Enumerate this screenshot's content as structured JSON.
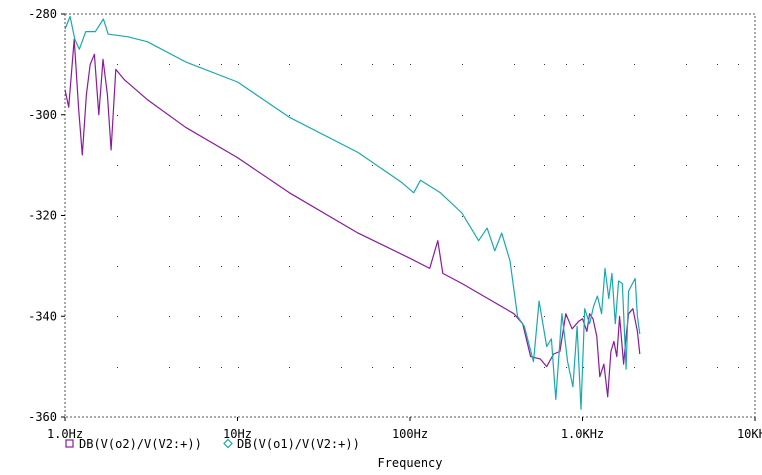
{
  "chart_data": {
    "type": "line",
    "title": "",
    "xlabel": "Frequency",
    "ylabel": "",
    "x_scale": "log",
    "xlim": [
      1,
      10000
    ],
    "ylim": [
      -360,
      -280
    ],
    "x_ticks": [
      1,
      10,
      100,
      1000,
      10000
    ],
    "x_tick_labels": [
      "1.0Hz",
      "10Hz",
      "100Hz",
      "1.0KHz",
      "10KHz"
    ],
    "y_ticks": [
      -280,
      -300,
      -320,
      -340,
      -360
    ],
    "y_tick_labels": [
      "-280",
      "-300",
      "-320",
      "-340",
      "-360"
    ],
    "grid": "dotted",
    "legend_position": "bottom-left",
    "series": [
      {
        "name": "DB(V(o2)/V(V2:+))",
        "color": "#8a1a9e",
        "marker": "square",
        "points": [
          [
            1.0,
            -295
          ],
          [
            1.05,
            -298.5
          ],
          [
            1.13,
            -285
          ],
          [
            1.2,
            -299
          ],
          [
            1.26,
            -308
          ],
          [
            1.33,
            -296
          ],
          [
            1.4,
            -290
          ],
          [
            1.48,
            -288
          ],
          [
            1.57,
            -300
          ],
          [
            1.66,
            -289
          ],
          [
            1.76,
            -296
          ],
          [
            1.85,
            -307
          ],
          [
            1.97,
            -291
          ],
          [
            2.2,
            -293
          ],
          [
            3.0,
            -297
          ],
          [
            5.0,
            -302.5
          ],
          [
            10,
            -308.5
          ],
          [
            20,
            -315.5
          ],
          [
            50,
            -323.5
          ],
          [
            100,
            -328.5
          ],
          [
            130,
            -330.5
          ],
          [
            145,
            -325
          ],
          [
            155,
            -331.5
          ],
          [
            200,
            -333.5
          ],
          [
            300,
            -337
          ],
          [
            400,
            -339.5
          ],
          [
            450,
            -341.5
          ],
          [
            500,
            -348
          ],
          [
            570,
            -348.5
          ],
          [
            620,
            -350
          ],
          [
            680,
            -347.5
          ],
          [
            740,
            -347
          ],
          [
            800,
            -339.5
          ],
          [
            870,
            -342.5
          ],
          [
            950,
            -341
          ],
          [
            1000,
            -340.5
          ],
          [
            1060,
            -343
          ],
          [
            1100,
            -339.5
          ],
          [
            1150,
            -340.5
          ],
          [
            1210,
            -344
          ],
          [
            1260,
            -352
          ],
          [
            1330,
            -349.5
          ],
          [
            1400,
            -356
          ],
          [
            1460,
            -347
          ],
          [
            1520,
            -345
          ],
          [
            1580,
            -348
          ],
          [
            1640,
            -340
          ],
          [
            1730,
            -349.5
          ],
          [
            1790,
            -344
          ],
          [
            1850,
            -339.5
          ],
          [
            1960,
            -338.5
          ],
          [
            2080,
            -343
          ],
          [
            2150,
            -347.5
          ]
        ]
      },
      {
        "name": "DB(V(o1)/V(V2:+))",
        "color": "#1aa8b0",
        "marker": "diamond",
        "points": [
          [
            1.0,
            -283
          ],
          [
            1.07,
            -280.5
          ],
          [
            1.14,
            -285
          ],
          [
            1.21,
            -287
          ],
          [
            1.32,
            -283.5
          ],
          [
            1.5,
            -283.5
          ],
          [
            1.67,
            -281
          ],
          [
            1.78,
            -284
          ],
          [
            2.3,
            -284.5
          ],
          [
            3.0,
            -285.5
          ],
          [
            5.0,
            -289.5
          ],
          [
            10,
            -293.5
          ],
          [
            20,
            -300.5
          ],
          [
            50,
            -307.5
          ],
          [
            90,
            -313.5
          ],
          [
            105,
            -315.5
          ],
          [
            115,
            -313
          ],
          [
            150,
            -315.5
          ],
          [
            200,
            -319.5
          ],
          [
            250,
            -325
          ],
          [
            280,
            -322.5
          ],
          [
            310,
            -327
          ],
          [
            340,
            -323.5
          ],
          [
            380,
            -329
          ],
          [
            420,
            -340
          ],
          [
            460,
            -342
          ],
          [
            520,
            -349
          ],
          [
            560,
            -337
          ],
          [
            620,
            -346
          ],
          [
            660,
            -344.5
          ],
          [
            700,
            -356.5
          ],
          [
            760,
            -339.5
          ],
          [
            820,
            -349
          ],
          [
            880,
            -354
          ],
          [
            930,
            -342
          ],
          [
            980,
            -358.5
          ],
          [
            1030,
            -338.5
          ],
          [
            1100,
            -341.5
          ],
          [
            1160,
            -338
          ],
          [
            1220,
            -336
          ],
          [
            1290,
            -339.5
          ],
          [
            1350,
            -330.5
          ],
          [
            1420,
            -336.5
          ],
          [
            1480,
            -331.5
          ],
          [
            1550,
            -341.5
          ],
          [
            1620,
            -333
          ],
          [
            1700,
            -333.5
          ],
          [
            1790,
            -350.5
          ],
          [
            1850,
            -335
          ],
          [
            1950,
            -333.5
          ],
          [
            2020,
            -332.5
          ],
          [
            2080,
            -340
          ],
          [
            2150,
            -343.5
          ]
        ]
      }
    ]
  }
}
